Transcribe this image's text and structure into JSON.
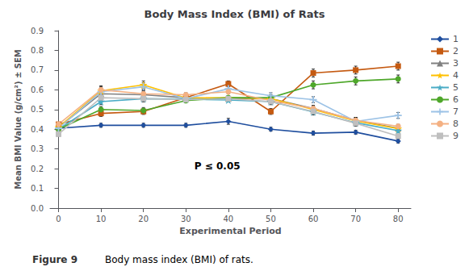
{
  "chart_data": {
    "type": "line",
    "title": "Body Mass Index (BMI) of Rats",
    "xlabel": "Experimental Period",
    "ylabel": "Mean BMI Value (g/cm²) ± SEM",
    "annotation": "P ≤ 0.05",
    "figure_label": "Figure 9",
    "figure_caption": "Body mass index (BMI) of rats.",
    "x": [
      0,
      10,
      20,
      30,
      40,
      50,
      60,
      70,
      80
    ],
    "series": [
      {
        "name": "1",
        "color": "#1F4E9E",
        "marker": "diamond",
        "values": [
          0.405,
          0.42,
          0.42,
          0.42,
          0.44,
          0.4,
          0.38,
          0.385,
          0.34
        ],
        "yerr": [
          0.01,
          0.01,
          0.01,
          0.01,
          0.015,
          0.01,
          0.01,
          0.01,
          0.01
        ]
      },
      {
        "name": "2",
        "color": "#C55A11",
        "marker": "square",
        "values": [
          0.425,
          0.48,
          0.49,
          0.56,
          0.63,
          0.49,
          0.685,
          0.7,
          0.72
        ],
        "yerr": [
          0.01,
          0.015,
          0.015,
          0.01,
          0.015,
          0.015,
          0.02,
          0.02,
          0.02
        ]
      },
      {
        "name": "3",
        "color": "#808080",
        "marker": "triangle",
        "values": [
          0.41,
          0.58,
          0.575,
          0.56,
          0.555,
          0.555,
          0.505,
          0.445,
          0.405
        ],
        "yerr": [
          0.01,
          0.02,
          0.015,
          0.01,
          0.015,
          0.015,
          0.015,
          0.015,
          0.01
        ]
      },
      {
        "name": "4",
        "color": "#FFC000",
        "marker": "star",
        "values": [
          0.41,
          0.595,
          0.625,
          0.558,
          0.56,
          0.555,
          0.5,
          0.442,
          0.403
        ],
        "yerr": [
          0.01,
          0.02,
          0.02,
          0.015,
          0.01,
          0.015,
          0.015,
          0.015,
          0.01
        ]
      },
      {
        "name": "5",
        "color": "#4BACC6",
        "marker": "star",
        "values": [
          0.4,
          0.54,
          0.555,
          0.553,
          0.548,
          0.54,
          0.488,
          0.433,
          0.393
        ],
        "yerr": [
          0.01,
          0.015,
          0.015,
          0.01,
          0.01,
          0.015,
          0.015,
          0.015,
          0.01
        ]
      },
      {
        "name": "6",
        "color": "#4EA72A",
        "marker": "circle",
        "values": [
          0.4,
          0.5,
          0.495,
          0.545,
          0.56,
          0.56,
          0.625,
          0.645,
          0.655
        ],
        "yerr": [
          0.01,
          0.015,
          0.015,
          0.01,
          0.01,
          0.015,
          0.02,
          0.02,
          0.02
        ]
      },
      {
        "name": "7",
        "color": "#9DC3E6",
        "marker": "plus",
        "values": [
          0.405,
          0.59,
          0.615,
          0.555,
          0.605,
          0.57,
          0.55,
          0.44,
          0.47
        ],
        "yerr": [
          0.01,
          0.02,
          0.02,
          0.01,
          0.015,
          0.015,
          0.015,
          0.015,
          0.015
        ]
      },
      {
        "name": "8",
        "color": "#F4B183",
        "marker": "circle",
        "values": [
          0.425,
          0.6,
          0.58,
          0.575,
          0.59,
          0.545,
          0.505,
          0.445,
          0.415
        ],
        "yerr": [
          0.01,
          0.02,
          0.02,
          0.01,
          0.01,
          0.015,
          0.015,
          0.015,
          0.01
        ]
      },
      {
        "name": "9",
        "color": "#BFBFBF",
        "marker": "square",
        "values": [
          0.375,
          0.56,
          0.555,
          0.55,
          0.555,
          0.54,
          0.49,
          0.43,
          0.365
        ],
        "yerr": [
          0.01,
          0.015,
          0.015,
          0.01,
          0.01,
          0.015,
          0.015,
          0.015,
          0.01
        ]
      }
    ],
    "xlim": [
      -2,
      83
    ],
    "xticks": [
      0,
      10,
      20,
      30,
      40,
      50,
      60,
      70,
      80
    ],
    "ylim": [
      0,
      0.9
    ],
    "yticks": [
      {
        "value": 0,
        "label": "0.0"
      },
      0.1,
      0.2,
      0.3,
      0.4,
      0.5,
      0.6,
      0.7,
      0.8,
      0.9
    ],
    "grid": false,
    "legend": "right"
  }
}
